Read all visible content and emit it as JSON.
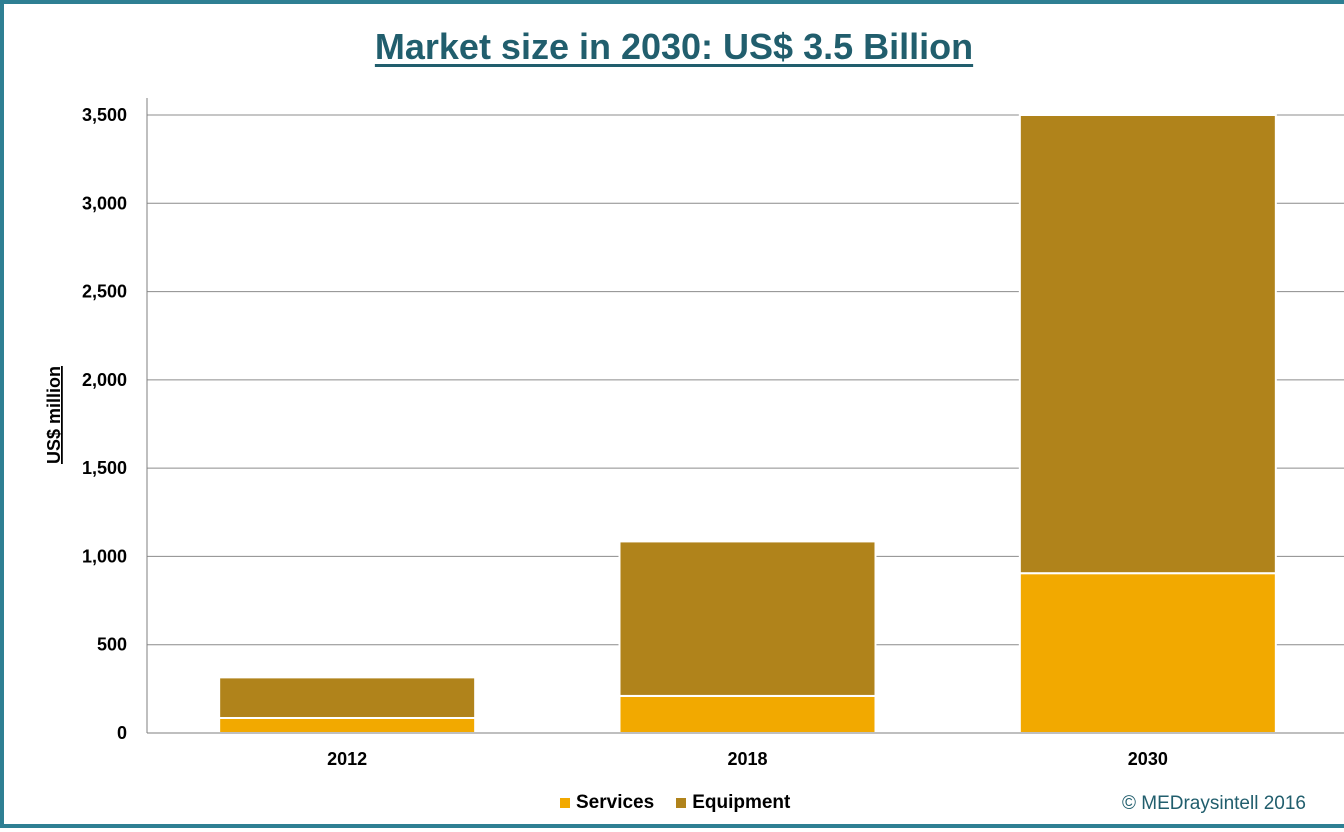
{
  "chart_data": {
    "type": "bar",
    "stacked": true,
    "title": "Market size in 2030: US$ 3.5 Billion",
    "ylabel": "US$ million",
    "xlabel": "",
    "categories": [
      "2012",
      "2018",
      "2030"
    ],
    "series": [
      {
        "name": "Services",
        "color": "#f2a900",
        "values": [
          85,
          210,
          905
        ]
      },
      {
        "name": "Equipment",
        "color": "#b0831b",
        "values": [
          230,
          875,
          2595
        ]
      }
    ],
    "ylim": [
      0,
      3600
    ],
    "yticks": [
      0,
      500,
      1000,
      1500,
      2000,
      2500,
      3000,
      3500
    ],
    "ytick_labels": [
      "0",
      "500",
      "1,000",
      "1,500",
      "2,000",
      "2,500",
      "3,000",
      "3,500"
    ],
    "grid": true,
    "legend_position": "bottom"
  },
  "footer": {
    "copyright": "© MEDraysintell 2016"
  }
}
